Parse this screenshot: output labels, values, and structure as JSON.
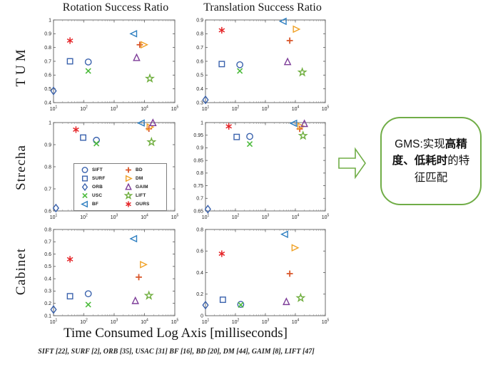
{
  "figure": {
    "column_titles": [
      "Rotation Success Ratio",
      "Translation Success Ratio"
    ],
    "row_labels": [
      "TUM",
      "Strecha",
      "Cabinet"
    ],
    "x_axis_title": "Time Consumed Log Axis [milliseconds]",
    "footnote": "SIFT [22], SURF [2], ORB [35], USAC [31] BF [16], BD [20], DM [44], GAIM [8], LIFT [47]"
  },
  "callout": {
    "arrow_color": "#70AD47",
    "box_border_color": "#70AD47",
    "full_text": "GMS:实现高精度、低耗时的特征匹配",
    "text_parts": [
      {
        "text": "GMS:实现",
        "bold": false
      },
      {
        "text": "高精度、低耗时",
        "bold": true
      },
      {
        "text": "的特征匹配",
        "bold": false
      }
    ]
  },
  "legend": {
    "columns": [
      [
        "SIFT",
        "SURF",
        "ORB",
        "USC",
        "BF"
      ],
      [
        "BD",
        "DM",
        "GAIM",
        "LIFT",
        "OURS"
      ]
    ]
  },
  "methods": {
    "SIFT": {
      "marker": "circle",
      "color": "#3A62AD"
    },
    "SURF": {
      "marker": "square",
      "color": "#3A62AD"
    },
    "ORB": {
      "marker": "diamond",
      "color": "#3A62AD"
    },
    "USC": {
      "marker": "x",
      "color": "#4CBB3C"
    },
    "BF": {
      "marker": "triangle-left",
      "color": "#2E7FC1"
    },
    "BD": {
      "marker": "plus",
      "color": "#D9572B"
    },
    "DM": {
      "marker": "triangle-right",
      "color": "#F0A125"
    },
    "GAIM": {
      "marker": "triangle-up",
      "color": "#7D3C98"
    },
    "LIFT": {
      "marker": "star",
      "color": "#6FAE3E"
    },
    "OURS": {
      "marker": "asterisk",
      "color": "#E52528"
    }
  },
  "chart_data": [
    {
      "id": "tum-rotation",
      "type": "scatter",
      "dataset": "TUM",
      "metric": "Rotation Success Ratio",
      "row": 0,
      "col": 0,
      "xscale": "log",
      "xlim": [
        10,
        100000
      ],
      "xticks": [
        "10^1",
        "10^2",
        "10^3",
        "10^4",
        "10^5"
      ],
      "ylim": [
        0.4,
        1.0
      ],
      "yticks": [
        0.4,
        0.5,
        0.6,
        0.7,
        0.8,
        0.9,
        1.0
      ],
      "points": [
        {
          "name": "SIFT",
          "x": 140,
          "y": 0.695
        },
        {
          "name": "SURF",
          "x": 35,
          "y": 0.7
        },
        {
          "name": "ORB",
          "x": 10,
          "y": 0.485
        },
        {
          "name": "USC",
          "x": 140,
          "y": 0.63
        },
        {
          "name": "BF",
          "x": 4500,
          "y": 0.9
        },
        {
          "name": "BD",
          "x": 7000,
          "y": 0.82
        },
        {
          "name": "DM",
          "x": 9500,
          "y": 0.82
        },
        {
          "name": "GAIM",
          "x": 5500,
          "y": 0.725
        },
        {
          "name": "LIFT",
          "x": 15000,
          "y": 0.575
        },
        {
          "name": "OURS",
          "x": 35,
          "y": 0.85
        }
      ]
    },
    {
      "id": "tum-translation",
      "type": "scatter",
      "dataset": "TUM",
      "metric": "Translation Success Ratio",
      "row": 0,
      "col": 1,
      "xscale": "log",
      "xlim": [
        10,
        100000
      ],
      "xticks": [
        "10^1",
        "10^2",
        "10^3",
        "10^4",
        "10^5"
      ],
      "ylim": [
        0.3,
        0.9
      ],
      "yticks": [
        0.3,
        0.4,
        0.5,
        0.6,
        0.7,
        0.8,
        0.9
      ],
      "points": [
        {
          "name": "SIFT",
          "x": 140,
          "y": 0.575
        },
        {
          "name": "SURF",
          "x": 35,
          "y": 0.58
        },
        {
          "name": "ORB",
          "x": 10,
          "y": 0.32
        },
        {
          "name": "USC",
          "x": 140,
          "y": 0.53
        },
        {
          "name": "BF",
          "x": 4000,
          "y": 0.89
        },
        {
          "name": "BD",
          "x": 6500,
          "y": 0.75
        },
        {
          "name": "DM",
          "x": 10500,
          "y": 0.833
        },
        {
          "name": "GAIM",
          "x": 5500,
          "y": 0.595
        },
        {
          "name": "LIFT",
          "x": 17000,
          "y": 0.52
        },
        {
          "name": "OURS",
          "x": 35,
          "y": 0.825
        }
      ]
    },
    {
      "id": "strecha-rotation",
      "type": "scatter",
      "dataset": "Strecha",
      "metric": "Rotation Success Ratio",
      "row": 1,
      "col": 0,
      "xscale": "log",
      "xlim": [
        10,
        100000
      ],
      "xticks": [
        "10^1",
        "10^2",
        "10^3",
        "10^4",
        "10^5"
      ],
      "ylim": [
        0.6,
        1.0
      ],
      "yticks": [
        0.6,
        0.7,
        0.8,
        0.9,
        1.0
      ],
      "points": [
        {
          "name": "SIFT",
          "x": 260,
          "y": 0.92
        },
        {
          "name": "SURF",
          "x": 95,
          "y": 0.932
        },
        {
          "name": "ORB",
          "x": 12,
          "y": 0.613
        },
        {
          "name": "USC",
          "x": 260,
          "y": 0.905
        },
        {
          "name": "BF",
          "x": 8000,
          "y": 0.998
        },
        {
          "name": "BD",
          "x": 14000,
          "y": 0.972
        },
        {
          "name": "DM",
          "x": 15000,
          "y": 0.98
        },
        {
          "name": "GAIM",
          "x": 19000,
          "y": 0.998
        },
        {
          "name": "LIFT",
          "x": 17000,
          "y": 0.912
        },
        {
          "name": "OURS",
          "x": 55,
          "y": 0.968
        }
      ]
    },
    {
      "id": "strecha-translation",
      "type": "scatter",
      "dataset": "Strecha",
      "metric": "Translation Success Ratio",
      "row": 1,
      "col": 1,
      "xscale": "log",
      "xlim": [
        10,
        100000
      ],
      "xticks": [
        "10^1",
        "10^2",
        "10^3",
        "10^4",
        "10^5"
      ],
      "ylim": [
        0.65,
        1.0
      ],
      "yticks": [
        0.65,
        0.7,
        0.75,
        0.8,
        0.85,
        0.9,
        0.95,
        1.0
      ],
      "points": [
        {
          "name": "SIFT",
          "x": 300,
          "y": 0.945
        },
        {
          "name": "SURF",
          "x": 110,
          "y": 0.943
        },
        {
          "name": "ORB",
          "x": 12,
          "y": 0.657
        },
        {
          "name": "USC",
          "x": 300,
          "y": 0.915
        },
        {
          "name": "BF",
          "x": 9000,
          "y": 0.997
        },
        {
          "name": "BD",
          "x": 14000,
          "y": 0.975
        },
        {
          "name": "DM",
          "x": 15000,
          "y": 0.985
        },
        {
          "name": "GAIM",
          "x": 20000,
          "y": 0.995
        },
        {
          "name": "LIFT",
          "x": 18000,
          "y": 0.948
        },
        {
          "name": "OURS",
          "x": 60,
          "y": 0.985
        }
      ]
    },
    {
      "id": "cabinet-rotation",
      "type": "scatter",
      "dataset": "Cabinet",
      "metric": "Rotation Success Ratio",
      "row": 2,
      "col": 0,
      "xscale": "log",
      "xlim": [
        10,
        100000
      ],
      "xticks": [
        "10^1",
        "10^2",
        "10^3",
        "10^4",
        "10^5"
      ],
      "ylim": [
        0.1,
        0.8
      ],
      "yticks": [
        0.1,
        0.2,
        0.3,
        0.4,
        0.5,
        0.6,
        0.7,
        0.8
      ],
      "points": [
        {
          "name": "SIFT",
          "x": 140,
          "y": 0.278
        },
        {
          "name": "SURF",
          "x": 35,
          "y": 0.258
        },
        {
          "name": "ORB",
          "x": 10,
          "y": 0.15
        },
        {
          "name": "USC",
          "x": 140,
          "y": 0.19
        },
        {
          "name": "BF",
          "x": 4500,
          "y": 0.725
        },
        {
          "name": "BD",
          "x": 6500,
          "y": 0.413
        },
        {
          "name": "DM",
          "x": 9000,
          "y": 0.515
        },
        {
          "name": "GAIM",
          "x": 5000,
          "y": 0.22
        },
        {
          "name": "LIFT",
          "x": 14000,
          "y": 0.263
        },
        {
          "name": "OURS",
          "x": 35,
          "y": 0.558
        }
      ]
    },
    {
      "id": "cabinet-translation",
      "type": "scatter",
      "dataset": "Cabinet",
      "metric": "Translation Success Ratio",
      "row": 2,
      "col": 1,
      "xscale": "log",
      "xlim": [
        10,
        100000
      ],
      "xticks": [
        "10^1",
        "10^2",
        "10^3",
        "10^4",
        "10^5"
      ],
      "ylim": [
        0.0,
        0.8
      ],
      "yticks": [
        0.0,
        0.2,
        0.4,
        0.6,
        0.8
      ],
      "points": [
        {
          "name": "SIFT",
          "x": 150,
          "y": 0.105
        },
        {
          "name": "SURF",
          "x": 38,
          "y": 0.148
        },
        {
          "name": "ORB",
          "x": 10,
          "y": 0.098
        },
        {
          "name": "USC",
          "x": 150,
          "y": 0.1
        },
        {
          "name": "BF",
          "x": 4500,
          "y": 0.755
        },
        {
          "name": "BD",
          "x": 6500,
          "y": 0.39
        },
        {
          "name": "DM",
          "x": 9500,
          "y": 0.63
        },
        {
          "name": "GAIM",
          "x": 5000,
          "y": 0.128
        },
        {
          "name": "LIFT",
          "x": 15000,
          "y": 0.165
        },
        {
          "name": "OURS",
          "x": 35,
          "y": 0.575
        }
      ]
    }
  ]
}
